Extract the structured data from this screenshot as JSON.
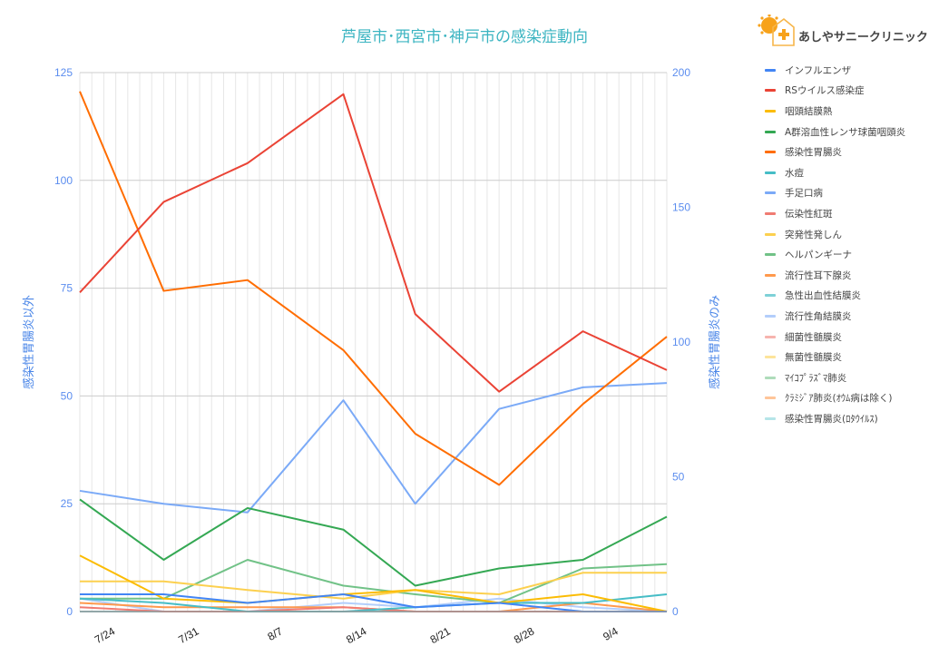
{
  "brand": {
    "name": "あしやサニークリニック",
    "logo_text": "Sunny"
  },
  "chart_data": {
    "type": "line",
    "title": "芦屋市･西宮市･神戸市の感染症動向",
    "ylabel_left": "感染性胃腸炎以外",
    "ylabel_right": "感染性胃腸炎のみ",
    "ylim_left": [
      0,
      125
    ],
    "ylim_right": [
      0,
      200
    ],
    "yticks_left": [
      0,
      25,
      50,
      75,
      100,
      125
    ],
    "yticks_right": [
      0,
      50,
      100,
      150,
      200
    ],
    "xticks": [
      "7/24",
      "7/31",
      "8/7",
      "8/14",
      "8/21",
      "8/28",
      "9/4"
    ],
    "x": [
      "7/21",
      "7/28",
      "8/4",
      "8/12",
      "8/18",
      "8/25",
      "9/1",
      "9/8"
    ],
    "grid": true,
    "legend": "right",
    "series": [
      {
        "name": "インフルエンザ",
        "color": "#4285f4",
        "axis": "left",
        "values": [
          4,
          4,
          2,
          4,
          1,
          2,
          0,
          0
        ]
      },
      {
        "name": "RSウイルス感染症",
        "color": "#ea4335",
        "axis": "left",
        "values": [
          74,
          95,
          104,
          120,
          69,
          51,
          65,
          56
        ]
      },
      {
        "name": "咽頭結膜熱",
        "color": "#fbbc04",
        "axis": "left",
        "values": [
          13,
          3,
          2,
          4,
          5,
          2,
          4,
          0
        ]
      },
      {
        "name": "A群溶血性レンサ球菌咽頭炎",
        "color": "#34a853",
        "axis": "left",
        "values": [
          26,
          12,
          24,
          19,
          6,
          10,
          12,
          22
        ]
      },
      {
        "name": "感染性胃腸炎",
        "color": "#ff6d01",
        "axis": "right",
        "values": [
          193,
          119,
          123,
          97,
          66,
          47,
          77,
          102
        ]
      },
      {
        "name": "水痘",
        "color": "#46bdc6",
        "axis": "left",
        "values": [
          3,
          2,
          0,
          0,
          1,
          2,
          2,
          4
        ]
      },
      {
        "name": "手足口病",
        "color": "#7baaf7",
        "axis": "left",
        "values": [
          28,
          25,
          23,
          49,
          25,
          47,
          52,
          53
        ]
      },
      {
        "name": "伝染性紅斑",
        "color": "#f07b72",
        "axis": "left",
        "values": [
          1,
          0,
          0,
          1,
          0,
          0,
          0,
          0
        ]
      },
      {
        "name": "突発性発しん",
        "color": "#fcd04f",
        "axis": "left",
        "values": [
          7,
          7,
          5,
          3,
          5,
          4,
          9,
          9
        ]
      },
      {
        "name": "ヘルパンギーナ",
        "color": "#71c287",
        "axis": "left",
        "values": [
          3,
          3,
          12,
          6,
          4,
          2,
          10,
          11
        ]
      },
      {
        "name": "流行性耳下腺炎",
        "color": "#ff994d",
        "axis": "left",
        "values": [
          2,
          1,
          1,
          1,
          0,
          0,
          2,
          0
        ]
      },
      {
        "name": "急性出血性結膜炎",
        "color": "#7ed1d7",
        "axis": "left",
        "values": [
          0,
          0,
          0,
          0,
          0,
          0,
          0,
          0
        ]
      },
      {
        "name": "流行性角結膜炎",
        "color": "#b3cefb",
        "axis": "left",
        "values": [
          3,
          0,
          0,
          2,
          1,
          3,
          1,
          0
        ]
      },
      {
        "name": "細菌性髄膜炎",
        "color": "#f7b4ae",
        "axis": "left",
        "values": [
          0,
          0,
          0,
          0,
          0,
          0,
          0,
          0
        ]
      },
      {
        "name": "無菌性髄膜炎",
        "color": "#fde49b",
        "axis": "left",
        "values": [
          0,
          0,
          0,
          0,
          0,
          0,
          0,
          0
        ]
      },
      {
        "name": "ﾏｲｺﾌﾟﾗｽﾞﾏ肺炎",
        "color": "#aedcba",
        "axis": "left",
        "values": [
          0,
          0,
          0,
          0,
          0,
          0,
          0,
          0
        ]
      },
      {
        "name": "ｸﾗﾐｼﾞｱ肺炎(ｵｳﾑ病は除く)",
        "color": "#ffc599",
        "axis": "left",
        "values": [
          0,
          0,
          0,
          0,
          0,
          0,
          0,
          0
        ]
      },
      {
        "name": "感染性胃腸炎(ﾛﾀｳｲﾙｽ)",
        "color": "#b5e5e8",
        "axis": "left",
        "values": [
          0,
          0,
          0,
          0,
          0,
          0,
          0,
          0
        ]
      }
    ]
  }
}
